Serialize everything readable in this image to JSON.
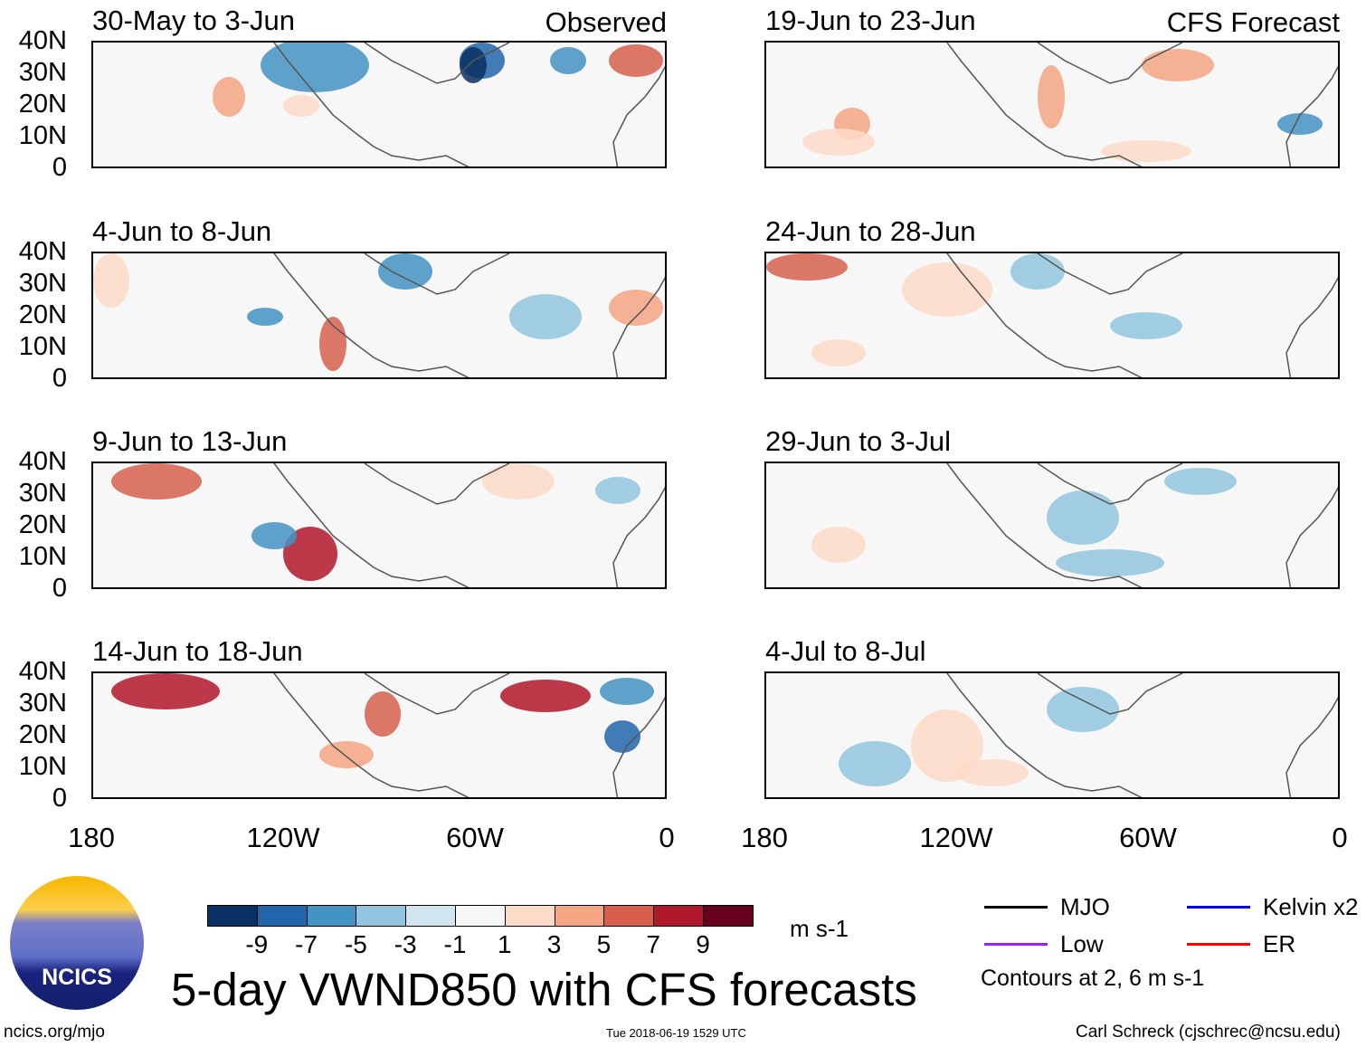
{
  "panels": [
    {
      "title": "30-May to 3-Jun",
      "tag": "Observed"
    },
    {
      "title": "19-Jun to 23-Jun",
      "tag": "CFS Forecast"
    },
    {
      "title": "4-Jun to 8-Jun",
      "tag": ""
    },
    {
      "title": "24-Jun to 28-Jun",
      "tag": ""
    },
    {
      "title": "9-Jun to 13-Jun",
      "tag": ""
    },
    {
      "title": "29-Jun to 3-Jul",
      "tag": ""
    },
    {
      "title": "14-Jun to 18-Jun",
      "tag": ""
    },
    {
      "title": "4-Jul to 8-Jul",
      "tag": ""
    }
  ],
  "lat_labels": [
    "40N",
    "30N",
    "20N",
    "10N",
    "0"
  ],
  "lon_labels": [
    "180",
    "120W",
    "60W",
    "0"
  ],
  "colorbar": {
    "colors": [
      "#0a3062",
      "#2166ac",
      "#4393c3",
      "#92c5de",
      "#d1e5f0",
      "#f7f7f7",
      "#fddbc7",
      "#f4a582",
      "#d6604d",
      "#b2182b",
      "#67001f"
    ],
    "labels": [
      "-9",
      "-7",
      "-5",
      "-3",
      "-1",
      "1",
      "3",
      "5",
      "7",
      "9"
    ],
    "units": "m s-1"
  },
  "legend": [
    {
      "label": "MJO",
      "color": "#000000"
    },
    {
      "label": "Kelvin x2",
      "color": "#0000ff"
    },
    {
      "label": "Low",
      "color": "#a020f0"
    },
    {
      "label": "ER",
      "color": "#ff0000"
    }
  ],
  "contours_note": "Contours at 2, 6 m s-1",
  "title": "5-day VWND850 with CFS forecasts",
  "logo_text": "NCICS",
  "footer": {
    "left": "ncics.org/mjo",
    "center": "Tue 2018-06-19 1529 UTC",
    "right": "Carl Schreck (cjschrec@ncsu.edu)"
  }
}
